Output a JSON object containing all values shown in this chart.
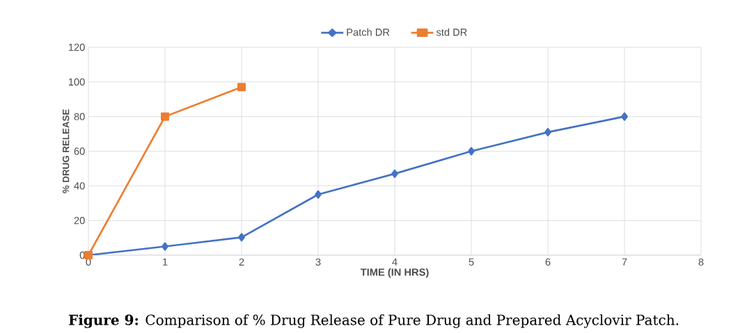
{
  "chart_data": {
    "type": "line",
    "xlabel": "TIME (IN HRS)",
    "ylabel": "% DRUG RELEASE",
    "x": [
      0,
      1,
      2,
      3,
      4,
      5,
      6,
      7
    ],
    "series": [
      {
        "name": "Patch DR",
        "color": "#4472c4",
        "marker": "diamond",
        "values": [
          0,
          5,
          10.3,
          35,
          47,
          60,
          71,
          80
        ]
      },
      {
        "name": "std DR",
        "color": "#ed7d31",
        "marker": "square",
        "x": [
          0,
          1,
          2
        ],
        "values": [
          0,
          80,
          97
        ]
      }
    ],
    "xlim": [
      0,
      8
    ],
    "xticks": [
      0,
      1,
      2,
      3,
      4,
      5,
      6,
      7,
      8
    ],
    "ylim": [
      0,
      120
    ],
    "yticks": [
      0,
      20,
      40,
      60,
      80,
      100,
      120
    ],
    "grid": true,
    "legend": "top",
    "line_style": "solid",
    "annotations": [
      "**Figure 9:** Comparison of % Drug Release of Pure Drug and Prepared Acyclovir Patch."
    ]
  }
}
